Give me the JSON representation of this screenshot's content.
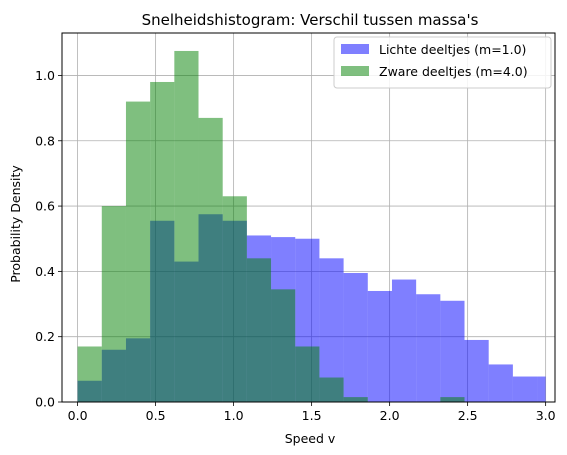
{
  "chart_data": {
    "type": "bar",
    "title": "Snelheidshistogram: Verschil tussen massa's",
    "xlabel": "Speed v",
    "ylabel": "Probability Density",
    "xlim": [
      -0.1,
      3.06
    ],
    "ylim": [
      0,
      1.13
    ],
    "xticks": [
      "0.0",
      "0.5",
      "1.0",
      "1.5",
      "2.0",
      "2.5",
      "3.0"
    ],
    "yticks": [
      "0.0",
      "0.2",
      "0.4",
      "0.6",
      "0.8",
      "1.0"
    ],
    "grid": true,
    "legend_position": "top-right",
    "series": [
      {
        "name": "Lichte deeltjes (m=1.0)",
        "color": "#0000ff",
        "opacity": 0.5,
        "bins": [
          [
            0.0,
            0.155,
            0.065
          ],
          [
            0.155,
            0.31,
            0.16
          ],
          [
            0.31,
            0.465,
            0.195
          ],
          [
            0.465,
            0.62,
            0.555
          ],
          [
            0.62,
            0.775,
            0.43
          ],
          [
            0.775,
            0.93,
            0.575
          ],
          [
            0.93,
            1.085,
            0.555
          ],
          [
            1.085,
            1.24,
            0.51
          ],
          [
            1.24,
            1.395,
            0.505
          ],
          [
            1.395,
            1.55,
            0.5
          ],
          [
            1.55,
            1.705,
            0.44
          ],
          [
            1.705,
            1.86,
            0.395
          ],
          [
            1.86,
            2.015,
            0.34
          ],
          [
            2.015,
            2.17,
            0.375
          ],
          [
            2.17,
            2.325,
            0.33
          ],
          [
            2.325,
            2.48,
            0.31
          ],
          [
            2.48,
            2.635,
            0.19
          ],
          [
            2.635,
            2.79,
            0.115
          ],
          [
            2.79,
            2.945,
            0.078
          ],
          [
            2.945,
            3.0,
            0.078
          ]
        ]
      },
      {
        "name": "Zware deeltjes (m=4.0)",
        "color": "#008000",
        "opacity": 0.5,
        "bins": [
          [
            0.0,
            0.155,
            0.17
          ],
          [
            0.155,
            0.31,
            0.6
          ],
          [
            0.31,
            0.465,
            0.92
          ],
          [
            0.465,
            0.62,
            0.98
          ],
          [
            0.62,
            0.775,
            1.075
          ],
          [
            0.775,
            0.93,
            0.87
          ],
          [
            0.93,
            1.085,
            0.63
          ],
          [
            1.085,
            1.24,
            0.44
          ],
          [
            1.24,
            1.395,
            0.345
          ],
          [
            1.395,
            1.55,
            0.17
          ],
          [
            1.55,
            1.705,
            0.075
          ],
          [
            1.705,
            1.86,
            0.015
          ],
          [
            2.325,
            2.48,
            0.015
          ]
        ]
      }
    ]
  }
}
